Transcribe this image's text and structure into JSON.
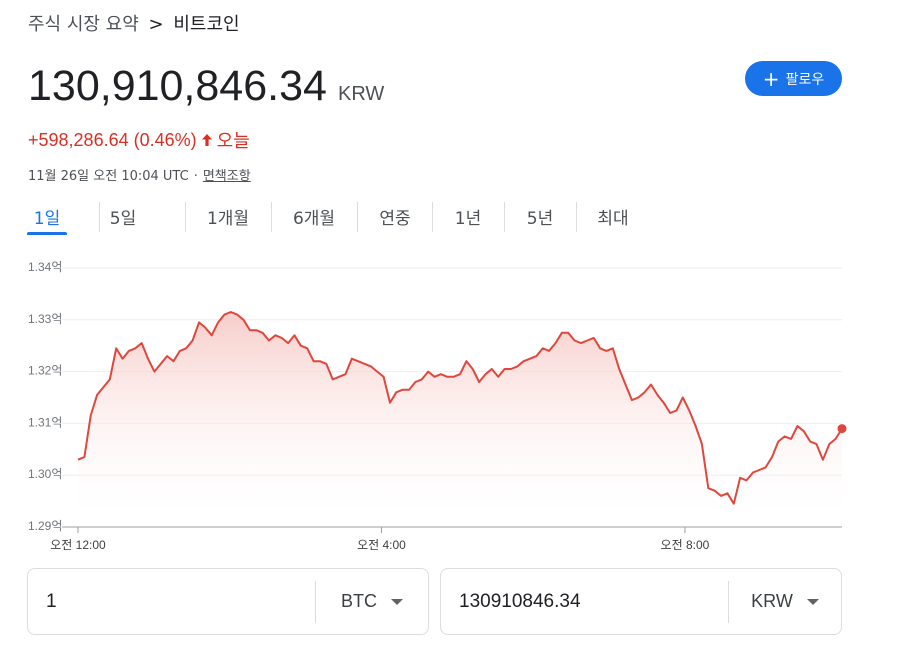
{
  "breadcrumb": {
    "parent": "주식 시장 요약",
    "separator": ">",
    "current": "비트코인"
  },
  "price": {
    "value": "130,910,846.34",
    "currency": "KRW",
    "change": "+598,286.64 (0.46%)",
    "change_direction": "up",
    "period_label": "오늘",
    "timestamp": "11월 26일 오전 10:04 UTC",
    "separator": "·",
    "disclaimer": "면책조항"
  },
  "follow_button": {
    "label": "팔로우",
    "icon": "plus-icon"
  },
  "tabs": [
    {
      "label": "1일",
      "active": true
    },
    {
      "label": "5일",
      "active": false
    },
    {
      "label": "1개월",
      "active": false
    },
    {
      "label": "6개월",
      "active": false
    },
    {
      "label": "연중",
      "active": false
    },
    {
      "label": "1년",
      "active": false
    },
    {
      "label": "5년",
      "active": false
    },
    {
      "label": "최대",
      "active": false
    }
  ],
  "colors": {
    "accent": "#1a73e8",
    "up": "#d93025",
    "line": "#e0473c"
  },
  "chart_data": {
    "type": "area",
    "y_tick_labels": [
      "1.34억",
      "1.33억",
      "1.32억",
      "1.31억",
      "1.30억",
      "1.29억"
    ],
    "y_ticks": [
      134000000,
      133000000,
      132000000,
      131000000,
      130000000,
      129000000
    ],
    "ylim": [
      129000000,
      134000000
    ],
    "x_tick_labels": [
      "오전 12:00",
      "오전 4:00",
      "오전 8:00"
    ],
    "x_tick_hours": [
      0,
      4,
      8
    ],
    "xlim_hours": [
      0,
      10.07
    ],
    "grid": true,
    "series": [
      {
        "y": [
          130.3,
          130.35,
          131.15,
          131.55,
          131.7,
          131.85,
          132.45,
          132.25,
          132.4,
          132.45,
          132.55,
          132.25,
          132.0,
          132.15,
          132.3,
          132.2,
          132.4,
          132.45,
          132.6,
          132.95,
          132.85,
          132.7,
          132.95,
          133.1,
          133.15,
          133.1,
          133.0,
          132.8,
          132.8,
          132.75,
          132.6,
          132.7,
          132.65,
          132.55,
          132.7,
          132.5,
          132.45,
          132.2,
          132.2,
          132.15,
          131.85,
          131.9,
          131.95,
          132.25,
          132.2,
          132.15,
          132.1,
          132.0,
          131.9,
          131.4,
          131.6,
          131.65,
          131.65,
          131.8,
          131.85,
          132.0,
          131.9,
          131.95,
          131.9,
          131.9,
          131.95,
          132.2,
          132.05,
          131.8,
          131.95,
          132.05,
          131.9,
          132.05,
          132.05,
          132.1,
          132.2,
          132.25,
          132.3,
          132.45,
          132.4,
          132.55,
          132.75,
          132.75,
          132.6,
          132.55,
          132.6,
          132.65,
          132.45,
          132.4,
          132.45,
          132.05,
          131.75,
          131.45,
          131.5,
          131.6,
          131.75,
          131.55,
          131.4,
          131.2,
          131.25,
          131.5,
          131.25,
          130.95,
          130.6,
          129.75,
          129.7,
          129.6,
          129.65,
          129.45,
          129.95,
          129.9,
          130.05,
          130.1,
          130.15,
          130.35,
          130.65,
          130.75,
          130.7,
          130.95,
          130.85,
          130.65,
          130.6,
          130.3,
          130.6,
          130.7,
          130.9
        ]
      }
    ]
  },
  "converter": {
    "left": {
      "value": "1",
      "unit": "BTC"
    },
    "right": {
      "value": "130910846.34",
      "unit": "KRW"
    }
  }
}
